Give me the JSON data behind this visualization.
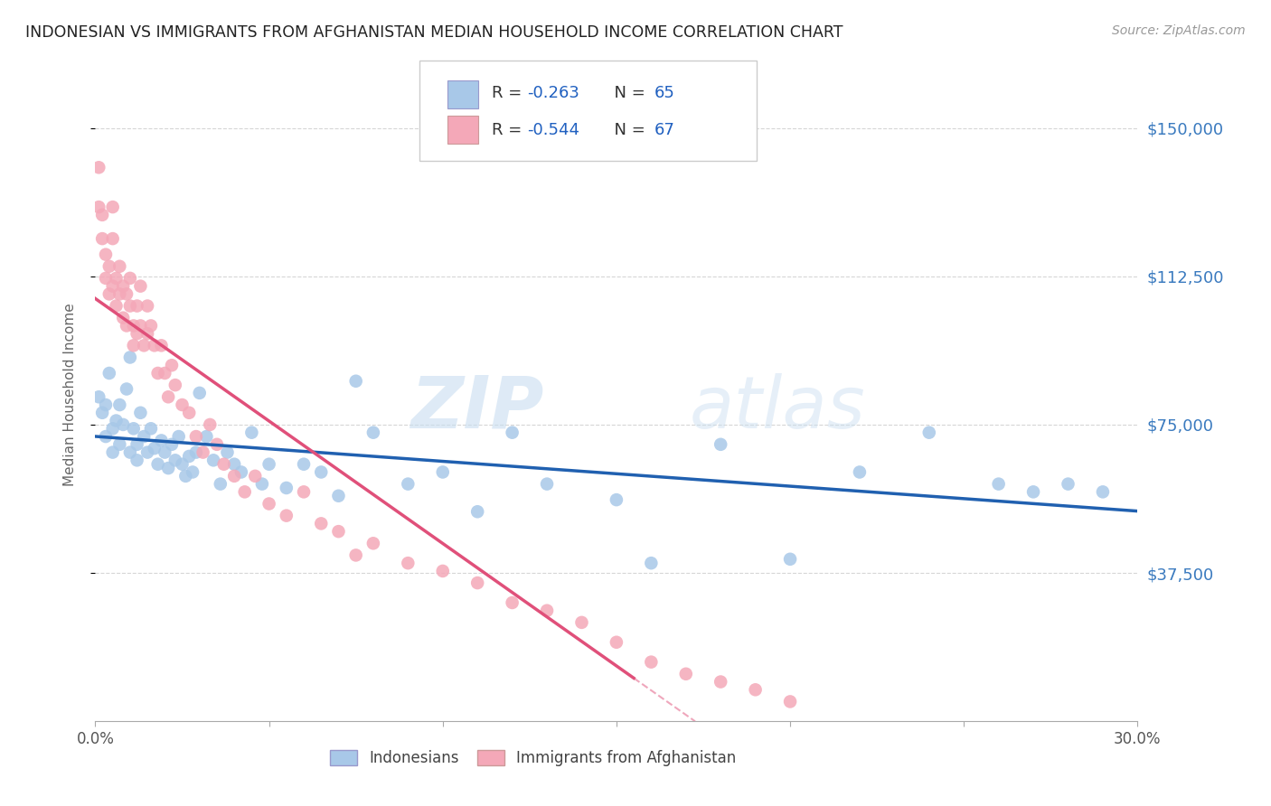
{
  "title": "INDONESIAN VS IMMIGRANTS FROM AFGHANISTAN MEDIAN HOUSEHOLD INCOME CORRELATION CHART",
  "source": "Source: ZipAtlas.com",
  "ylabel": "Median Household Income",
  "yticks": [
    37500,
    75000,
    112500,
    150000
  ],
  "ytick_labels": [
    "$37,500",
    "$75,000",
    "$112,500",
    "$150,000"
  ],
  "xlim": [
    0.0,
    0.3
  ],
  "ylim": [
    0,
    165000
  ],
  "legend_label1": "Indonesians",
  "legend_label2": "Immigrants from Afghanistan",
  "color_blue": "#a8c8e8",
  "color_pink": "#f4a8b8",
  "line_blue": "#2060b0",
  "line_pink": "#e0507a",
  "background": "#ffffff",
  "grid_color": "#cccccc",
  "watermark_zip": "ZIP",
  "watermark_atlas": "atlas",
  "indonesian_x": [
    0.001,
    0.002,
    0.003,
    0.003,
    0.004,
    0.005,
    0.005,
    0.006,
    0.007,
    0.007,
    0.008,
    0.009,
    0.01,
    0.01,
    0.011,
    0.012,
    0.012,
    0.013,
    0.014,
    0.015,
    0.016,
    0.017,
    0.018,
    0.019,
    0.02,
    0.021,
    0.022,
    0.023,
    0.024,
    0.025,
    0.026,
    0.027,
    0.028,
    0.029,
    0.03,
    0.032,
    0.034,
    0.036,
    0.038,
    0.04,
    0.042,
    0.045,
    0.048,
    0.05,
    0.055,
    0.06,
    0.065,
    0.07,
    0.075,
    0.08,
    0.09,
    0.1,
    0.11,
    0.12,
    0.13,
    0.15,
    0.16,
    0.18,
    0.2,
    0.22,
    0.24,
    0.26,
    0.27,
    0.28,
    0.29
  ],
  "indonesian_y": [
    82000,
    78000,
    72000,
    80000,
    88000,
    74000,
    68000,
    76000,
    70000,
    80000,
    75000,
    84000,
    92000,
    68000,
    74000,
    70000,
    66000,
    78000,
    72000,
    68000,
    74000,
    69000,
    65000,
    71000,
    68000,
    64000,
    70000,
    66000,
    72000,
    65000,
    62000,
    67000,
    63000,
    68000,
    83000,
    72000,
    66000,
    60000,
    68000,
    65000,
    63000,
    73000,
    60000,
    65000,
    59000,
    65000,
    63000,
    57000,
    86000,
    73000,
    60000,
    63000,
    53000,
    73000,
    60000,
    56000,
    40000,
    70000,
    41000,
    63000,
    73000,
    60000,
    58000,
    60000,
    58000
  ],
  "afghan_x": [
    0.001,
    0.001,
    0.002,
    0.002,
    0.003,
    0.003,
    0.004,
    0.004,
    0.005,
    0.005,
    0.005,
    0.006,
    0.006,
    0.007,
    0.007,
    0.008,
    0.008,
    0.009,
    0.009,
    0.01,
    0.01,
    0.011,
    0.011,
    0.012,
    0.012,
    0.013,
    0.013,
    0.014,
    0.015,
    0.015,
    0.016,
    0.017,
    0.018,
    0.019,
    0.02,
    0.021,
    0.022,
    0.023,
    0.025,
    0.027,
    0.029,
    0.031,
    0.033,
    0.035,
    0.037,
    0.04,
    0.043,
    0.046,
    0.05,
    0.055,
    0.06,
    0.065,
    0.07,
    0.075,
    0.08,
    0.09,
    0.1,
    0.11,
    0.12,
    0.13,
    0.14,
    0.15,
    0.16,
    0.17,
    0.18,
    0.19,
    0.2
  ],
  "afghan_y": [
    140000,
    130000,
    128000,
    122000,
    118000,
    112000,
    115000,
    108000,
    130000,
    122000,
    110000,
    112000,
    105000,
    115000,
    108000,
    110000,
    102000,
    108000,
    100000,
    112000,
    105000,
    100000,
    95000,
    105000,
    98000,
    110000,
    100000,
    95000,
    105000,
    98000,
    100000,
    95000,
    88000,
    95000,
    88000,
    82000,
    90000,
    85000,
    80000,
    78000,
    72000,
    68000,
    75000,
    70000,
    65000,
    62000,
    58000,
    62000,
    55000,
    52000,
    58000,
    50000,
    48000,
    42000,
    45000,
    40000,
    38000,
    35000,
    30000,
    28000,
    25000,
    20000,
    15000,
    12000,
    10000,
    8000,
    5000
  ]
}
